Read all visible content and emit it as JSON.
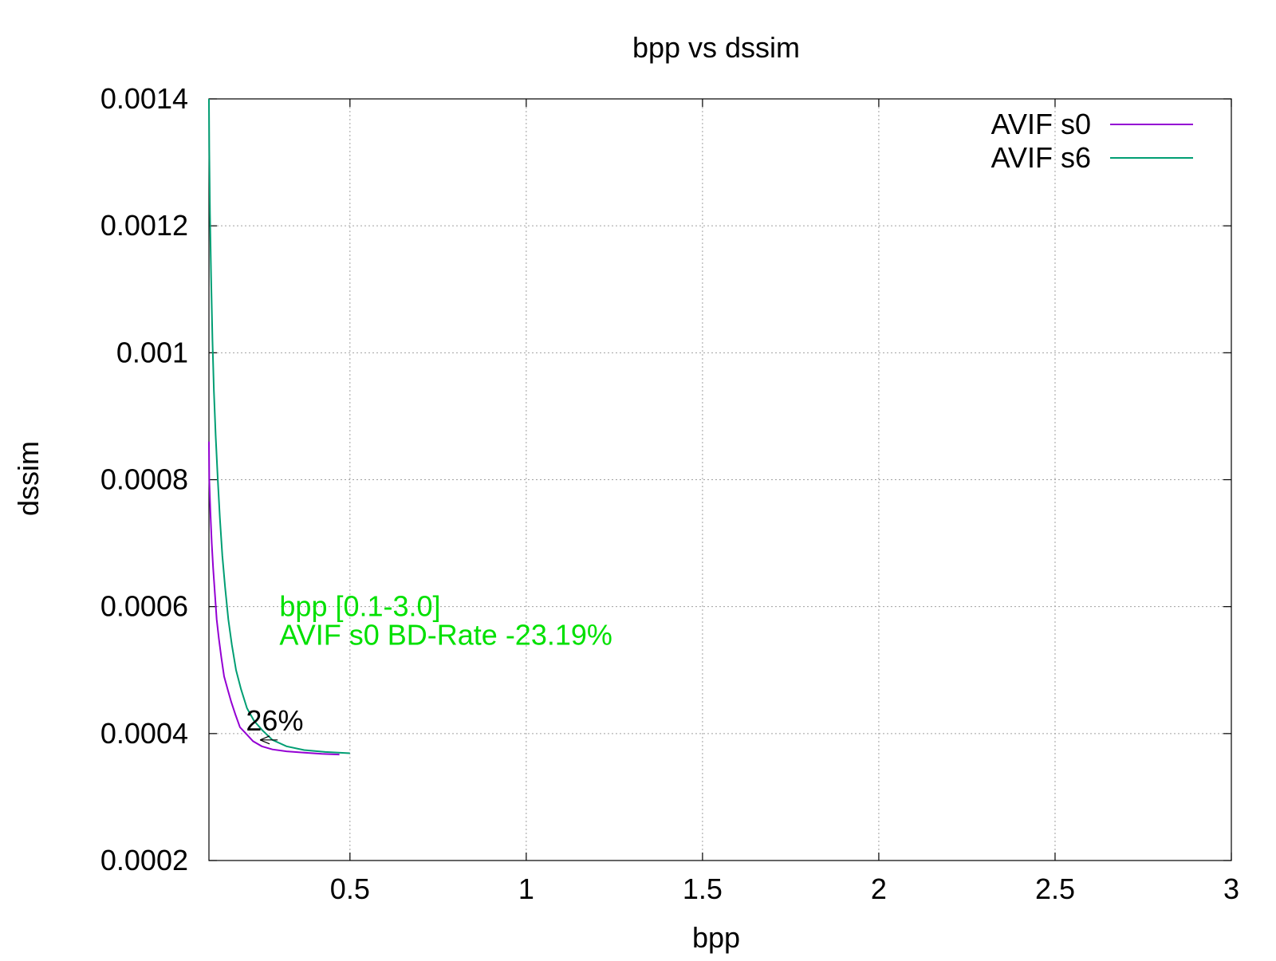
{
  "chart_data": {
    "type": "line",
    "title": "bpp vs dssim",
    "xlabel": "bpp",
    "ylabel": "dssim",
    "xlim": [
      0.1,
      3.0
    ],
    "ylim": [
      0.0002,
      0.0014
    ],
    "x_ticks": [
      0.5,
      1,
      1.5,
      2,
      2.5,
      3
    ],
    "x_tick_labels": [
      "0.5",
      "1",
      "1.5",
      "2",
      "2.5",
      "3"
    ],
    "y_ticks": [
      0.0002,
      0.0004,
      0.0006,
      0.0008,
      0.001,
      0.0012,
      0.0014
    ],
    "y_tick_labels": [
      "0.0002",
      "0.0004",
      "0.0006",
      "0.0008",
      "0.001",
      "0.0012",
      "0.0014"
    ],
    "grid": true,
    "legend_position": "top-right",
    "series": [
      {
        "name": "AVIF s0",
        "color": "#9400d3",
        "points": [
          [
            0.1,
            0.00086
          ],
          [
            0.101,
            0.0008
          ],
          [
            0.104,
            0.00075
          ],
          [
            0.108,
            0.0007
          ],
          [
            0.112,
            0.00066
          ],
          [
            0.117,
            0.00062
          ],
          [
            0.122,
            0.00058
          ],
          [
            0.128,
            0.00055
          ],
          [
            0.135,
            0.00052
          ],
          [
            0.143,
            0.00049
          ],
          [
            0.153,
            0.00047
          ],
          [
            0.163,
            0.00045
          ],
          [
            0.175,
            0.00043
          ],
          [
            0.188,
            0.00041
          ],
          [
            0.205,
            0.0004
          ],
          [
            0.225,
            0.000388
          ],
          [
            0.25,
            0.00038
          ],
          [
            0.28,
            0.000375
          ],
          [
            0.32,
            0.000372
          ],
          [
            0.37,
            0.00037
          ],
          [
            0.42,
            0.000368
          ],
          [
            0.47,
            0.000367
          ]
        ]
      },
      {
        "name": "AVIF s6",
        "color": "#009e73",
        "points": [
          [
            0.1,
            0.0014
          ],
          [
            0.101,
            0.00132
          ],
          [
            0.103,
            0.00122
          ],
          [
            0.106,
            0.00112
          ],
          [
            0.11,
            0.00102
          ],
          [
            0.114,
            0.00094
          ],
          [
            0.119,
            0.00087
          ],
          [
            0.125,
            0.0008
          ],
          [
            0.131,
            0.00074
          ],
          [
            0.138,
            0.00068
          ],
          [
            0.146,
            0.00063
          ],
          [
            0.155,
            0.00058
          ],
          [
            0.165,
            0.00054
          ],
          [
            0.177,
            0.0005
          ],
          [
            0.191,
            0.00047
          ],
          [
            0.208,
            0.00044
          ],
          [
            0.228,
            0.00042
          ],
          [
            0.252,
            0.000405
          ],
          [
            0.28,
            0.00039
          ],
          [
            0.32,
            0.00038
          ],
          [
            0.37,
            0.000374
          ],
          [
            0.43,
            0.000371
          ],
          [
            0.5,
            0.000369
          ]
        ]
      }
    ],
    "annotations": [
      {
        "id": "bd-range",
        "text": "bpp [0.1-3.0]",
        "x": 0.3,
        "y": 0.000585,
        "color": "#00e000"
      },
      {
        "id": "bd-rate",
        "text": "AVIF s0 BD-Rate -23.19%",
        "x": 0.3,
        "y": 0.00054,
        "color": "#00e000"
      },
      {
        "id": "pct",
        "text": "26%",
        "x": 0.205,
        "y": 0.000405,
        "color": "#000000"
      }
    ],
    "arrow": {
      "from": [
        0.295,
        0.00039
      ],
      "to": [
        0.245,
        0.00039
      ]
    }
  }
}
